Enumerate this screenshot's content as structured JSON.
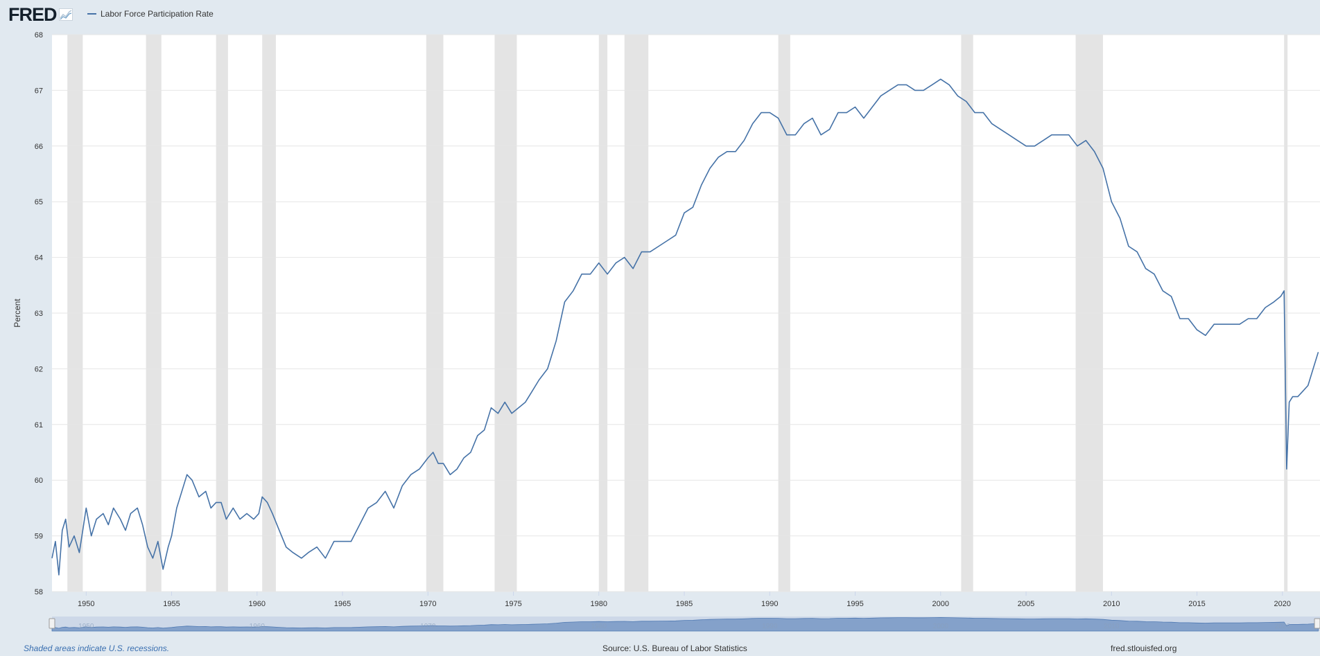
{
  "header": {
    "logo_text": "FRED",
    "logo_icon": "chart-line-icon",
    "legend_label": "Labor Force Participation Rate",
    "series_color": "#4572a7"
  },
  "footer": {
    "footnote": "Shaded areas indicate U.S. recessions.",
    "source": "Source: U.S. Bureau of Labor Statistics",
    "site": "fred.stlouisfed.org"
  },
  "chart_data": {
    "type": "line",
    "title": "",
    "xlabel": "",
    "ylabel": "Percent",
    "xlim": [
      1948.0,
      2022.2
    ],
    "ylim": [
      58,
      68
    ],
    "y_ticks": [
      58,
      59,
      60,
      61,
      62,
      63,
      64,
      65,
      66,
      67,
      68
    ],
    "x_ticks": [
      1950,
      1955,
      1960,
      1965,
      1970,
      1975,
      1980,
      1985,
      1990,
      1995,
      2000,
      2005,
      2010,
      2015,
      2020
    ],
    "grid": true,
    "recession_color": "#e4e4e4",
    "recessions": [
      [
        1948.9,
        1949.8
      ],
      [
        1953.5,
        1954.4
      ],
      [
        1957.6,
        1958.3
      ],
      [
        1960.3,
        1961.1
      ],
      [
        1969.9,
        1970.9
      ],
      [
        1973.9,
        1975.2
      ],
      [
        1980.0,
        1980.5
      ],
      [
        1981.5,
        1982.9
      ],
      [
        1990.5,
        1991.2
      ],
      [
        2001.2,
        2001.9
      ],
      [
        2007.9,
        2009.5
      ],
      [
        2020.1,
        2020.3
      ]
    ],
    "series": [
      {
        "name": "Labor Force Participation Rate",
        "color": "#4572a7",
        "x": [
          1948.0,
          1948.2,
          1948.4,
          1948.6,
          1948.8,
          1949.0,
          1949.3,
          1949.6,
          1949.8,
          1950.0,
          1950.3,
          1950.6,
          1951.0,
          1951.3,
          1951.6,
          1952.0,
          1952.3,
          1952.6,
          1953.0,
          1953.3,
          1953.6,
          1953.9,
          1954.2,
          1954.5,
          1954.8,
          1955.0,
          1955.3,
          1955.6,
          1955.9,
          1956.2,
          1956.6,
          1957.0,
          1957.3,
          1957.6,
          1957.9,
          1958.2,
          1958.6,
          1959.0,
          1959.4,
          1959.8,
          1960.1,
          1960.3,
          1960.6,
          1960.9,
          1961.3,
          1961.7,
          1962.1,
          1962.6,
          1963.0,
          1963.5,
          1964.0,
          1964.5,
          1965.0,
          1965.5,
          1966.0,
          1966.5,
          1967.0,
          1967.5,
          1968.0,
          1968.5,
          1969.0,
          1969.5,
          1970.0,
          1970.3,
          1970.6,
          1970.9,
          1971.3,
          1971.7,
          1972.1,
          1972.5,
          1972.9,
          1973.3,
          1973.7,
          1974.1,
          1974.5,
          1974.9,
          1975.3,
          1975.7,
          1976.1,
          1976.5,
          1977.0,
          1977.5,
          1978.0,
          1978.5,
          1979.0,
          1979.5,
          1980.0,
          1980.5,
          1981.0,
          1981.5,
          1982.0,
          1982.5,
          1983.0,
          1983.5,
          1984.0,
          1984.5,
          1985.0,
          1985.5,
          1986.0,
          1986.5,
          1987.0,
          1987.5,
          1988.0,
          1988.5,
          1989.0,
          1989.5,
          1990.0,
          1990.5,
          1991.0,
          1991.5,
          1992.0,
          1992.5,
          1993.0,
          1993.5,
          1994.0,
          1994.5,
          1995.0,
          1995.5,
          1996.0,
          1996.5,
          1997.0,
          1997.5,
          1998.0,
          1998.5,
          1999.0,
          1999.5,
          2000.0,
          2000.5,
          2001.0,
          2001.5,
          2002.0,
          2002.5,
          2003.0,
          2003.5,
          2004.0,
          2004.5,
          2005.0,
          2005.5,
          2006.0,
          2006.5,
          2007.0,
          2007.5,
          2008.0,
          2008.5,
          2009.0,
          2009.5,
          2010.0,
          2010.5,
          2011.0,
          2011.5,
          2012.0,
          2012.5,
          2013.0,
          2013.5,
          2014.0,
          2014.5,
          2015.0,
          2015.5,
          2016.0,
          2016.5,
          2017.0,
          2017.5,
          2018.0,
          2018.5,
          2019.0,
          2019.5,
          2019.9,
          2020.1,
          2020.25,
          2020.4,
          2020.6,
          2020.9,
          2021.2,
          2021.5,
          2021.8,
          2022.1
        ],
        "y": [
          58.6,
          58.9,
          58.3,
          59.1,
          59.3,
          58.8,
          59.0,
          58.7,
          59.1,
          59.5,
          59.0,
          59.3,
          59.4,
          59.2,
          59.5,
          59.3,
          59.1,
          59.4,
          59.5,
          59.2,
          58.8,
          58.6,
          58.9,
          58.4,
          58.8,
          59.0,
          59.5,
          59.8,
          60.1,
          60.0,
          59.7,
          59.8,
          59.5,
          59.6,
          59.6,
          59.3,
          59.5,
          59.3,
          59.4,
          59.3,
          59.4,
          59.7,
          59.6,
          59.4,
          59.1,
          58.8,
          58.7,
          58.6,
          58.7,
          58.8,
          58.6,
          58.9,
          58.9,
          58.9,
          59.2,
          59.5,
          59.6,
          59.8,
          59.5,
          59.9,
          60.1,
          60.2,
          60.4,
          60.5,
          60.3,
          60.3,
          60.1,
          60.2,
          60.4,
          60.5,
          60.8,
          60.9,
          61.3,
          61.2,
          61.4,
          61.2,
          61.3,
          61.4,
          61.6,
          61.8,
          62.0,
          62.5,
          63.2,
          63.4,
          63.7,
          63.7,
          63.9,
          63.7,
          63.9,
          64.0,
          63.8,
          64.1,
          64.1,
          64.2,
          64.3,
          64.4,
          64.8,
          64.9,
          65.3,
          65.6,
          65.8,
          65.9,
          65.9,
          66.1,
          66.4,
          66.6,
          66.6,
          66.5,
          66.2,
          66.2,
          66.4,
          66.5,
          66.2,
          66.3,
          66.6,
          66.6,
          66.7,
          66.5,
          66.7,
          66.9,
          67.0,
          67.1,
          67.1,
          67.0,
          67.0,
          67.1,
          67.2,
          67.1,
          66.9,
          66.8,
          66.6,
          66.6,
          66.4,
          66.3,
          66.2,
          66.1,
          66.0,
          66.0,
          66.1,
          66.2,
          66.2,
          66.2,
          66.0,
          66.1,
          65.9,
          65.6,
          65.0,
          64.7,
          64.2,
          64.1,
          63.8,
          63.7,
          63.4,
          63.3,
          62.9,
          62.9,
          62.7,
          62.6,
          62.8,
          62.8,
          62.8,
          62.8,
          62.9,
          62.9,
          63.1,
          63.2,
          63.3,
          63.4,
          60.2,
          61.4,
          61.5,
          61.5,
          61.6,
          61.7,
          62.0,
          62.3
        ]
      }
    ]
  }
}
